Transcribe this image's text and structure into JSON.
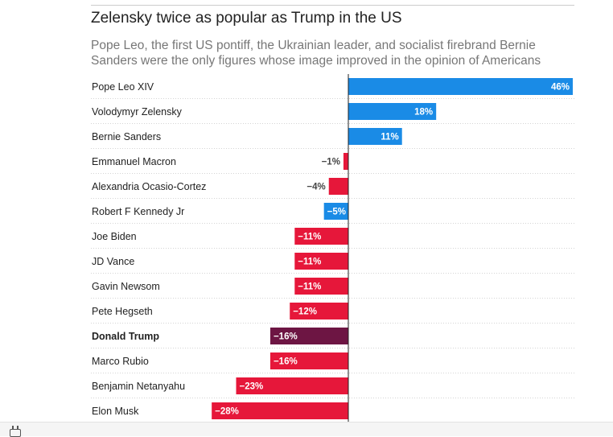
{
  "chart_data": {
    "type": "bar",
    "orientation": "horizontal",
    "title": "Zelensky twice as popular as Trump in the US",
    "subtitle": "Pope Leo, the first US pontiff, the Ukrainian leader, and socialist firebrand Bernie Sanders were the only figures whose image improved in the opinion of Americans",
    "categories": [
      "Pope Leo XIV",
      "Volodymyr Zelensky",
      "Bernie Sanders",
      "Emmanuel Macron",
      "Alexandria Ocasio-Cortez",
      "Robert F Kennedy Jr",
      "Joe Biden",
      "JD Vance",
      "Gavin Newsom",
      "Pete Hegseth",
      "Donald Trump",
      "Marco Rubio",
      "Benjamin Netanyahu",
      "Elon Musk"
    ],
    "values": [
      46,
      18,
      11,
      -1,
      -4,
      -5,
      -11,
      -11,
      -11,
      -12,
      -16,
      -16,
      -23,
      -28
    ],
    "value_labels": [
      "46%",
      "18%",
      "11%",
      "−1%",
      "−4%",
      "−5%",
      "−11%",
      "−11%",
      "−11%",
      "−12%",
      "−16%",
      "−16%",
      "−23%",
      "−28%"
    ],
    "bar_colors": [
      "#1a8be6",
      "#1a8be6",
      "#1a8be6",
      "#e6173a",
      "#e6173a",
      "#1a8be6",
      "#e6173a",
      "#e6173a",
      "#e6173a",
      "#e6173a",
      "#6d1543",
      "#e6173a",
      "#e6173a",
      "#e6173a"
    ],
    "highlight": "Donald Trump",
    "xlim": [
      -29,
      46
    ],
    "grid": false,
    "legend": "none",
    "colors": {
      "positive": "#1a8be6",
      "negative": "#e6173a",
      "highlight": "#6d1543"
    }
  },
  "footer": {
    "icon": "calendar-icon"
  }
}
